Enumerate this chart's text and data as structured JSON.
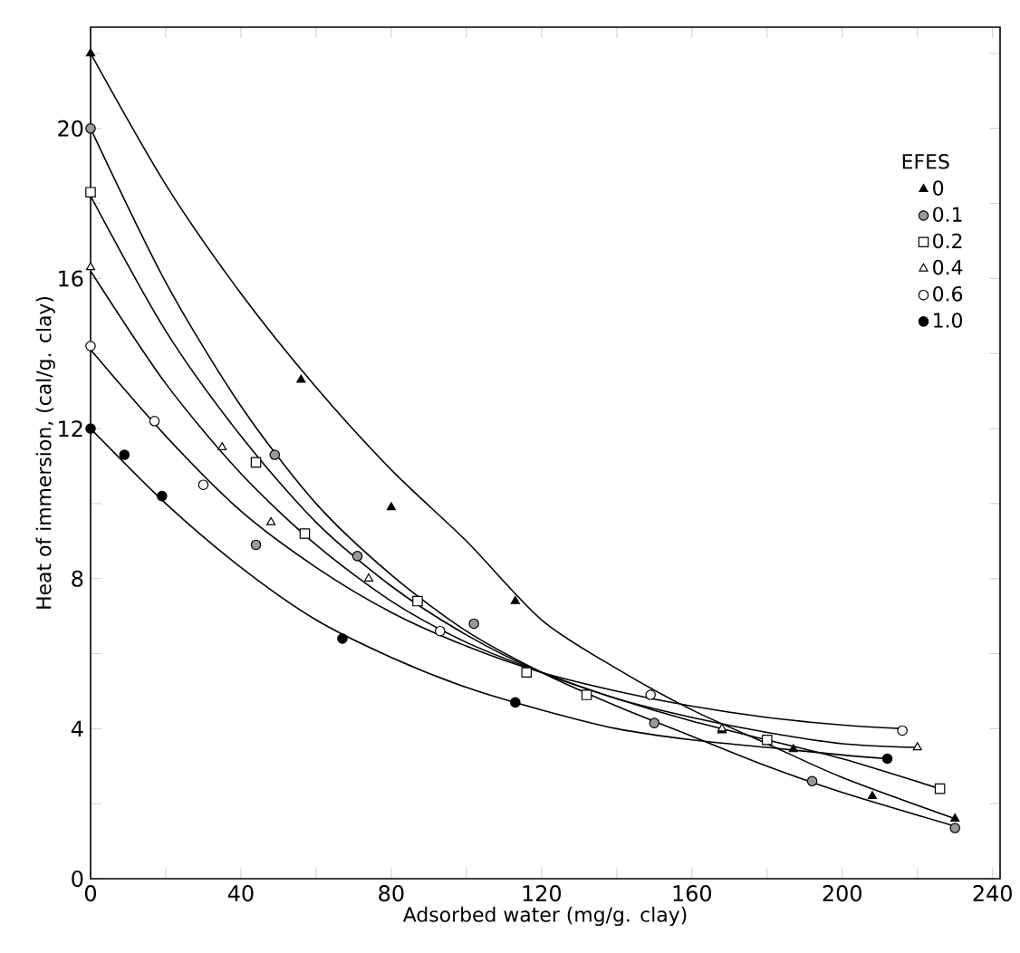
{
  "chart_data": {
    "type": "scatter",
    "xlabel": "Adsorbed water (mg/g. clay)",
    "ylabel": "Heat of immersion, (cal/g. clay)",
    "legend_title": "EFES",
    "legend": "top right",
    "xlim": [
      0,
      242
    ],
    "ylim": [
      0,
      22.7
    ],
    "xticks": [
      0,
      {
        "value": 20,
        "label": null
      },
      40,
      {
        "value": 60,
        "label": null
      },
      80,
      {
        "value": 100,
        "label": null
      },
      120,
      {
        "value": 140,
        "label": null
      },
      160,
      {
        "value": 180,
        "label": null
      },
      200,
      {
        "value": 220,
        "label": null
      },
      240
    ],
    "yticks": [
      0,
      {
        "value": 2,
        "label": null
      },
      4,
      {
        "value": 6,
        "label": null
      },
      8,
      {
        "value": 10,
        "label": null
      },
      12,
      {
        "value": 14,
        "label": null
      },
      16,
      {
        "value": 18,
        "label": null
      },
      20,
      {
        "value": 22,
        "label": null
      }
    ],
    "series": [
      {
        "name": "0",
        "color": "#000000",
        "marker": "triangle",
        "x": [
          0,
          56,
          80,
          113,
          168,
          187,
          208,
          230
        ],
        "values": [
          22,
          13.3,
          9.9,
          7.4,
          3.95,
          3.45,
          2.2,
          1.6
        ]
      },
      {
        "name": "0.1",
        "color": "#999999",
        "marker": "circle",
        "x": [
          0,
          44,
          49,
          71,
          102,
          150,
          192,
          230
        ],
        "values": [
          20,
          8.9,
          11.3,
          8.6,
          6.8,
          4.15,
          2.6,
          1.35
        ]
      },
      {
        "name": "0.2",
        "color": "#ffffff",
        "marker": "square",
        "x": [
          0,
          44,
          57,
          87,
          116,
          132,
          180,
          226
        ],
        "values": [
          18.3,
          11.1,
          9.2,
          7.4,
          5.5,
          4.9,
          3.7,
          2.4
        ]
      },
      {
        "name": "0.4",
        "color": "#ffffff",
        "marker": "triangle",
        "x": [
          0,
          35,
          48,
          74,
          168,
          220
        ],
        "values": [
          16.3,
          11.5,
          9.5,
          8.0,
          4.0,
          3.5
        ]
      },
      {
        "name": "0.6",
        "color": "#ffffff",
        "marker": "circle",
        "x": [
          0,
          17,
          30,
          93,
          149,
          216
        ],
        "values": [
          14.2,
          12.2,
          10.5,
          6.6,
          4.9,
          3.95
        ]
      },
      {
        "name": "1.0",
        "color": "#000000",
        "marker": "circle",
        "x": [
          0,
          9,
          19,
          67,
          113,
          212
        ],
        "values": [
          12.0,
          11.3,
          10.2,
          6.4,
          4.7,
          3.2
        ]
      },
      {
        "type": "line",
        "color": "#000000",
        "marker": "none",
        "x": [
          0,
          20,
          40,
          60,
          80,
          100,
          120,
          140,
          160,
          180,
          200,
          230
        ],
        "values": [
          22,
          18.5,
          15.6,
          13.1,
          10.9,
          9.0,
          6.9,
          5.6,
          4.5,
          3.6,
          2.7,
          1.6
        ]
      },
      {
        "type": "line",
        "color": "#000000",
        "marker": "none",
        "x": [
          0,
          20,
          40,
          60,
          80,
          100,
          120,
          140,
          160,
          180,
          200,
          230
        ],
        "values": [
          20,
          15.9,
          12.6,
          10.0,
          8.1,
          6.6,
          5.5,
          4.6,
          3.8,
          3.0,
          2.3,
          1.4
        ]
      },
      {
        "type": "line",
        "color": "#000000",
        "marker": "none",
        "x": [
          0,
          20,
          40,
          60,
          80,
          100,
          120,
          140,
          160,
          180,
          200,
          226
        ],
        "values": [
          18.2,
          14.6,
          11.8,
          9.5,
          7.8,
          6.5,
          5.5,
          4.8,
          4.2,
          3.7,
          3.2,
          2.4
        ]
      },
      {
        "type": "line",
        "color": "#000000",
        "marker": "none",
        "x": [
          0,
          20,
          40,
          60,
          80,
          100,
          120,
          140,
          160,
          180,
          200,
          220
        ],
        "values": [
          16.2,
          13.2,
          10.8,
          8.9,
          7.4,
          6.3,
          5.5,
          4.8,
          4.3,
          3.9,
          3.6,
          3.5
        ]
      },
      {
        "type": "line",
        "color": "#000000",
        "marker": "none",
        "x": [
          0,
          20,
          40,
          60,
          80,
          100,
          120,
          140,
          160,
          180,
          200,
          216
        ],
        "values": [
          14.1,
          11.8,
          9.8,
          8.3,
          7.1,
          6.2,
          5.5,
          5.0,
          4.6,
          4.3,
          4.1,
          4.0
        ]
      },
      {
        "type": "line",
        "color": "#000000",
        "marker": "none",
        "x": [
          0,
          20,
          40,
          60,
          80,
          100,
          120,
          140,
          160,
          180,
          200,
          212
        ],
        "values": [
          12,
          10.0,
          8.3,
          6.9,
          5.9,
          5.1,
          4.5,
          4.0,
          3.7,
          3.5,
          3.3,
          3.2
        ]
      }
    ]
  }
}
